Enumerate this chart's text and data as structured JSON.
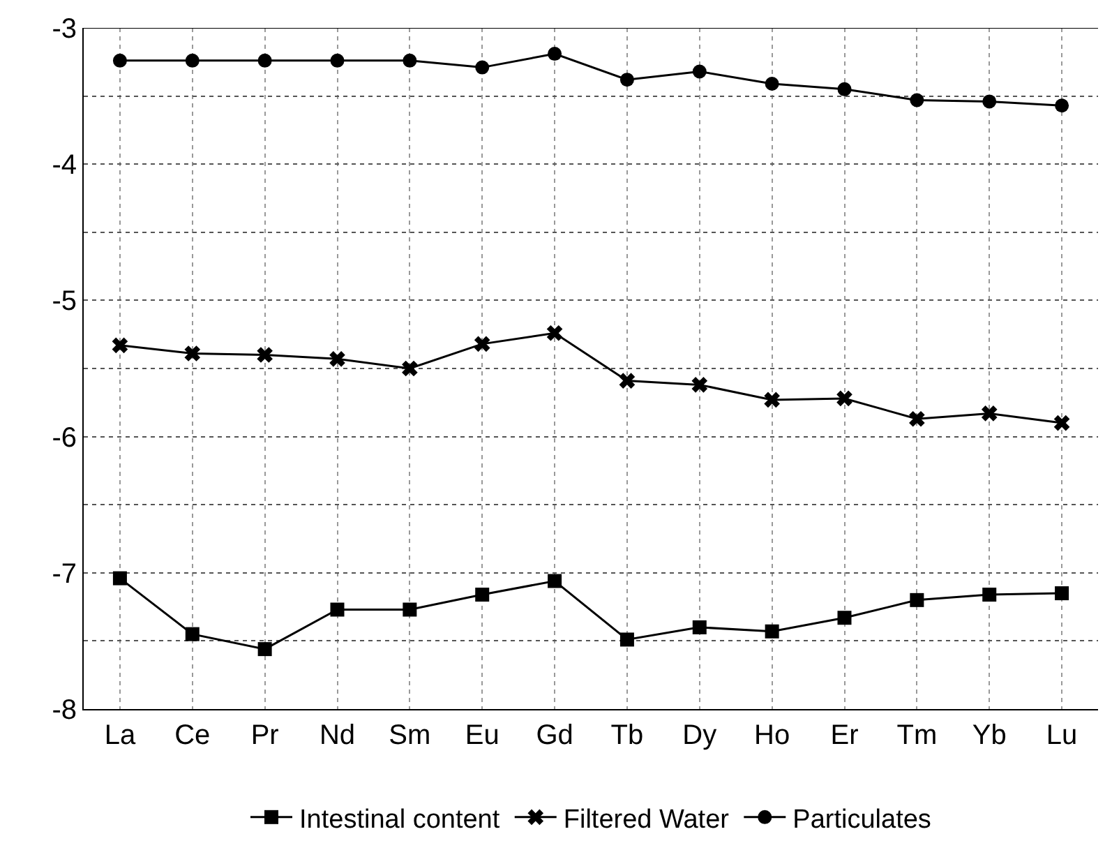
{
  "chart_data": {
    "type": "line",
    "categories": [
      "La",
      "Ce",
      "Pr",
      "Nd",
      "Sm",
      "Eu",
      "Gd",
      "Tb",
      "Dy",
      "Ho",
      "Er",
      "Tm",
      "Yb",
      "Lu"
    ],
    "series": [
      {
        "name": "Intestinal content",
        "color": "#000000",
        "marker": "square",
        "values": [
          -7.04,
          -7.45,
          -7.56,
          -7.27,
          -7.27,
          -7.16,
          -7.06,
          -7.49,
          -7.4,
          -7.43,
          -7.33,
          -7.2,
          -7.16,
          -7.15
        ]
      },
      {
        "name": "Filtered Water",
        "color": "#000000",
        "marker": "cross",
        "values": [
          -5.33,
          -5.39,
          -5.4,
          -5.43,
          -5.5,
          -5.32,
          -5.24,
          -5.59,
          -5.62,
          -5.73,
          -5.72,
          -5.87,
          -5.83,
          -5.9
        ]
      },
      {
        "name": "Particulates",
        "color": "#000000",
        "marker": "circle",
        "values": [
          -3.24,
          -3.24,
          -3.24,
          -3.24,
          -3.24,
          -3.29,
          -3.19,
          -3.38,
          -3.32,
          -3.41,
          -3.45,
          -3.53,
          -3.54,
          -3.57
        ]
      }
    ],
    "ylim": [
      -8,
      -3
    ],
    "yticks": [
      -8,
      {
        "value": -7.5,
        "label": null
      },
      -7,
      {
        "value": -6.5,
        "label": null
      },
      -6,
      {
        "value": -5.5,
        "label": null
      },
      -5,
      {
        "value": -4.5,
        "label": null
      },
      -4,
      {
        "value": -3.5,
        "label": null
      },
      -3
    ],
    "grid": true,
    "legend": "bottom",
    "line_style": "solid"
  }
}
